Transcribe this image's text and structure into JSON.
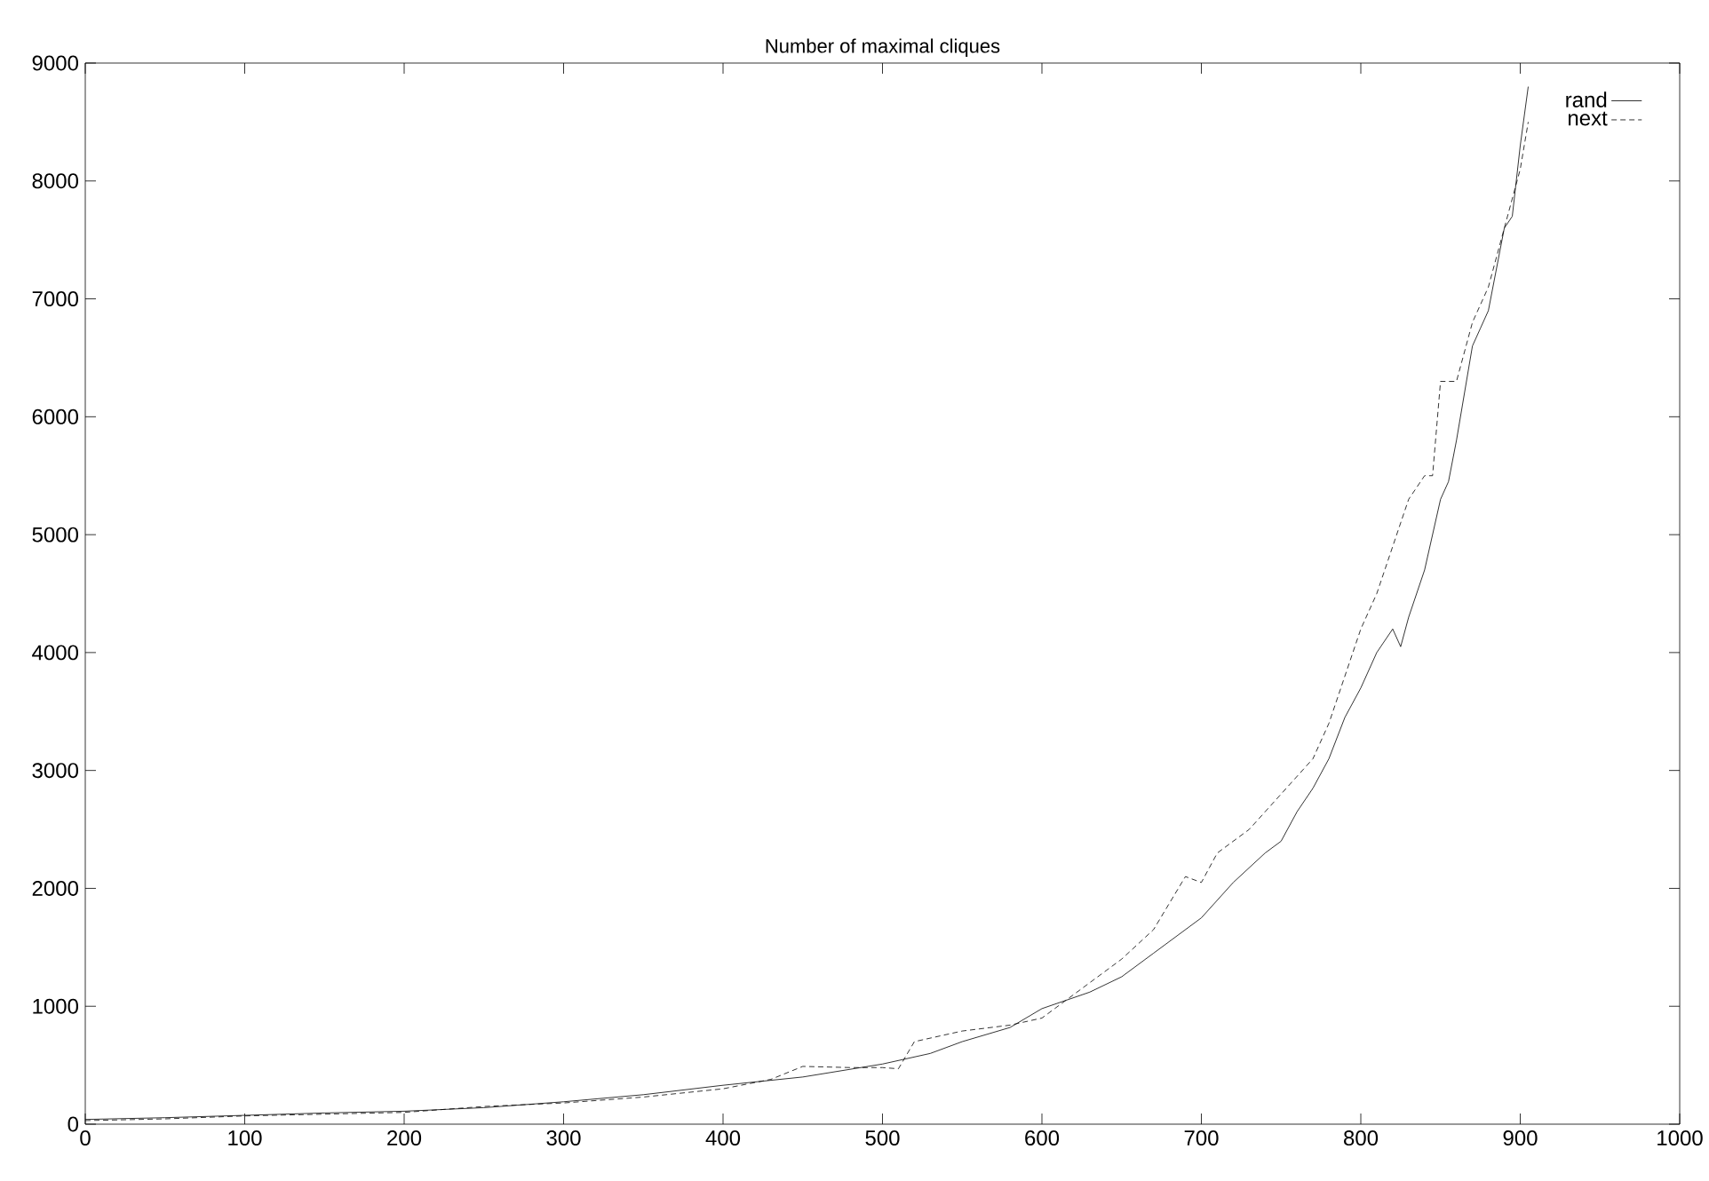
{
  "chart_data": {
    "type": "line",
    "title": "Number of maximal cliques",
    "xlim": [
      0,
      1000
    ],
    "ylim": [
      0,
      9000
    ],
    "xticks": [
      0,
      100,
      200,
      300,
      400,
      500,
      600,
      700,
      800,
      900,
      1000
    ],
    "yticks": [
      0,
      1000,
      2000,
      3000,
      4000,
      5000,
      6000,
      7000,
      8000,
      9000
    ],
    "legend": "top right",
    "grid": false,
    "marker": "none",
    "series": [
      {
        "name": "rand",
        "color": "#000000",
        "line_style": "solid",
        "x": [
          0,
          50,
          100,
          150,
          200,
          250,
          300,
          350,
          400,
          450,
          500,
          530,
          550,
          580,
          600,
          630,
          650,
          670,
          680,
          700,
          720,
          740,
          750,
          760,
          770,
          780,
          790,
          800,
          810,
          820,
          825,
          830,
          840,
          850,
          855,
          860,
          870,
          875,
          880,
          890,
          895,
          900,
          905
        ],
        "values": [
          40,
          55,
          75,
          95,
          110,
          140,
          190,
          250,
          330,
          400,
          510,
          600,
          700,
          820,
          980,
          1120,
          1250,
          1450,
          1550,
          1750,
          2050,
          2300,
          2400,
          2650,
          2850,
          3100,
          3450,
          3700,
          4000,
          4200,
          4050,
          4300,
          4700,
          5300,
          5450,
          5800,
          6600,
          6750,
          6900,
          7600,
          7700,
          8300,
          8800
        ]
      },
      {
        "name": "next",
        "color": "#000000",
        "line_style": "dashed",
        "x": [
          0,
          50,
          100,
          150,
          200,
          250,
          300,
          350,
          400,
          430,
          450,
          480,
          500,
          510,
          520,
          550,
          580,
          600,
          630,
          650,
          670,
          690,
          700,
          710,
          730,
          750,
          770,
          780,
          800,
          810,
          820,
          830,
          840,
          845,
          850,
          860,
          870,
          880,
          890,
          900,
          905
        ],
        "values": [
          30,
          45,
          70,
          85,
          100,
          150,
          180,
          230,
          300,
          380,
          490,
          480,
          480,
          470,
          700,
          790,
          840,
          900,
          1200,
          1400,
          1650,
          2100,
          2050,
          2300,
          2500,
          2800,
          3100,
          3400,
          4200,
          4500,
          4900,
          5300,
          5500,
          5500,
          6300,
          6300,
          6800,
          7100,
          7600,
          8100,
          8500
        ]
      }
    ]
  }
}
